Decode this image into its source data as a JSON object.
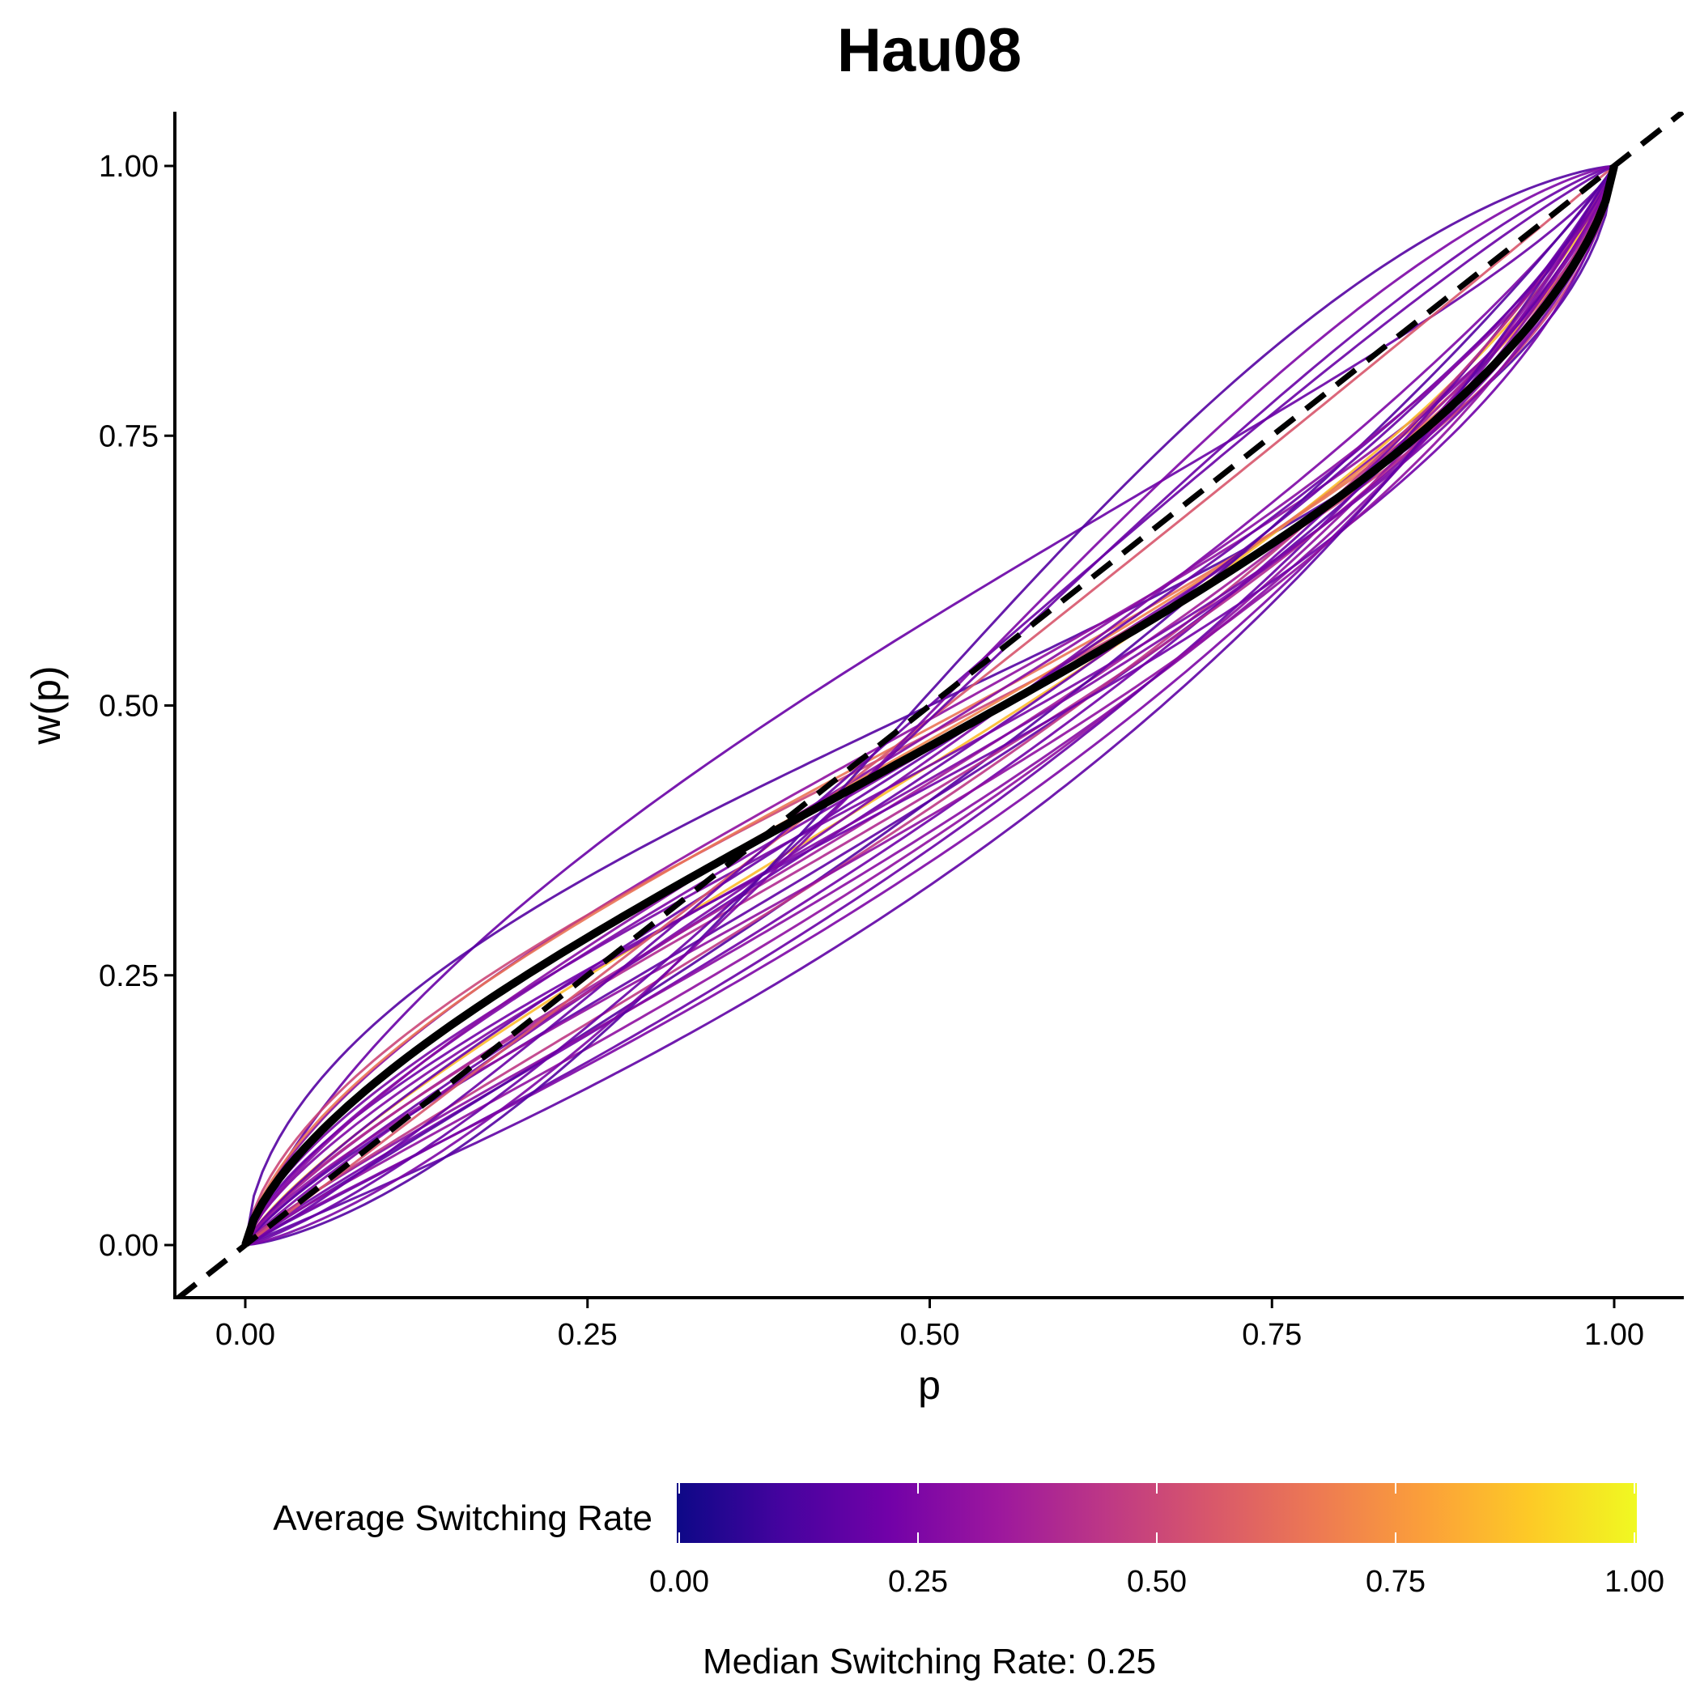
{
  "chart_data": {
    "type": "line",
    "title": "Hau08",
    "xlabel": "p",
    "ylabel": "w(p)",
    "xlim": [
      -0.05,
      1.05
    ],
    "ylim": [
      -0.05,
      1.05
    ],
    "x_ticks": [
      "0.00",
      "0.25",
      "0.50",
      "0.75",
      "1.00"
    ],
    "y_ticks": [
      "0.00",
      "0.25",
      "0.50",
      "0.75",
      "1.00"
    ],
    "grid": false,
    "reference_line": {
      "type": "identity",
      "style": "dashed",
      "color": "#000000"
    },
    "aggregate_curve": {
      "delta": 0.86,
      "gamma": 0.7,
      "color": "#000000"
    },
    "series": [
      {
        "delta": 1.38,
        "gamma": 0.8,
        "rate": 0.2
      },
      {
        "delta": 1.0,
        "gamma": 0.6,
        "rate": 0.15
      },
      {
        "delta": 0.85,
        "gamma": 0.75,
        "rate": 0.25
      },
      {
        "delta": 0.95,
        "gamma": 0.7,
        "rate": 0.3
      },
      {
        "delta": 0.9,
        "gamma": 0.65,
        "rate": 0.5
      },
      {
        "delta": 0.8,
        "gamma": 0.8,
        "rate": 0.85
      },
      {
        "delta": 0.88,
        "gamma": 0.72,
        "rate": 0.7
      },
      {
        "delta": 0.92,
        "gamma": 0.68,
        "rate": 0.65
      },
      {
        "delta": 0.78,
        "gamma": 0.85,
        "rate": 0.2
      },
      {
        "delta": 0.75,
        "gamma": 0.8,
        "rate": 0.35
      },
      {
        "delta": 0.82,
        "gamma": 0.9,
        "rate": 0.25
      },
      {
        "delta": 0.7,
        "gamma": 0.82,
        "rate": 0.18
      },
      {
        "delta": 0.65,
        "gamma": 0.9,
        "rate": 0.22
      },
      {
        "delta": 0.7,
        "gamma": 0.95,
        "rate": 0.15
      },
      {
        "delta": 0.6,
        "gamma": 0.9,
        "rate": 0.3
      },
      {
        "delta": 0.62,
        "gamma": 0.85,
        "rate": 0.28
      },
      {
        "delta": 0.58,
        "gamma": 0.95,
        "rate": 0.2
      },
      {
        "delta": 0.55,
        "gamma": 0.92,
        "rate": 0.25
      },
      {
        "delta": 0.68,
        "gamma": 0.88,
        "rate": 0.45
      },
      {
        "delta": 0.72,
        "gamma": 0.78,
        "rate": 0.4
      },
      {
        "delta": 0.8,
        "gamma": 0.7,
        "rate": 0.24
      },
      {
        "delta": 0.76,
        "gamma": 0.74,
        "rate": 0.26
      },
      {
        "delta": 0.84,
        "gamma": 0.82,
        "rate": 0.2
      },
      {
        "delta": 0.74,
        "gamma": 0.7,
        "rate": 0.22
      },
      {
        "delta": 0.66,
        "gamma": 0.78,
        "rate": 0.3
      },
      {
        "delta": 0.9,
        "gamma": 0.78,
        "rate": 0.28
      },
      {
        "delta": 0.5,
        "gamma": 0.98,
        "rate": 0.18
      },
      {
        "delta": 0.95,
        "gamma": 1.0,
        "rate": 0.55
      },
      {
        "delta": 0.95,
        "gamma": 1.2,
        "rate": 0.2
      },
      {
        "delta": 1.05,
        "gamma": 1.4,
        "rate": 0.15
      },
      {
        "delta": 1.0,
        "gamma": 1.1,
        "rate": 0.2
      },
      {
        "delta": 0.97,
        "gamma": 1.3,
        "rate": 0.25
      }
    ],
    "color_legend": {
      "title": "Average Switching Rate",
      "range": [
        0,
        1
      ],
      "ticks": [
        "0.00",
        "0.25",
        "0.50",
        "0.75",
        "1.00"
      ],
      "colormap": "plasma",
      "stops": [
        "#0d0887",
        "#46039f",
        "#7201a8",
        "#9c179e",
        "#bd3786",
        "#d8576b",
        "#ed7953",
        "#fb9f3a",
        "#fdca26",
        "#f0f921"
      ]
    },
    "caption": "Median Switching Rate: 0.25"
  }
}
